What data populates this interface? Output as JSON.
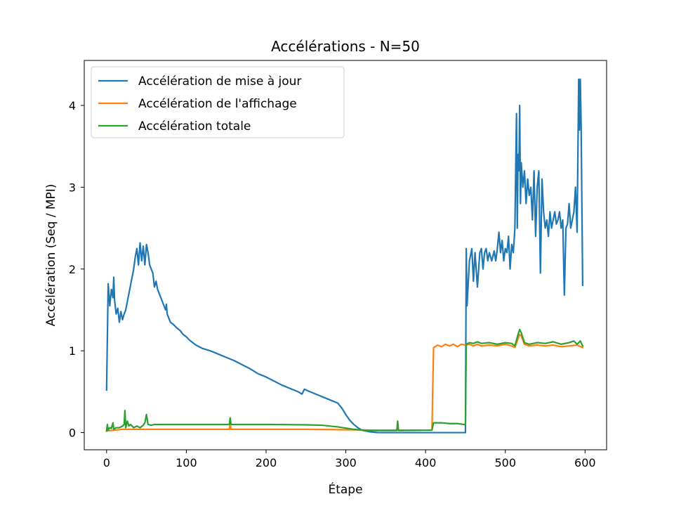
{
  "chart_data": {
    "type": "line",
    "title": "Accélérations - N=50",
    "xlabel": "Étape",
    "ylabel": "Accélération (Seq / MPI)",
    "xlim": [
      -28,
      627
    ],
    "ylim": [
      -0.21,
      4.55
    ],
    "xticks": [
      0,
      100,
      200,
      300,
      400,
      500,
      600
    ],
    "yticks": [
      0,
      1,
      2,
      3,
      4
    ],
    "legend_position": "upper-left",
    "grid": false,
    "series": [
      {
        "name": "Accélération de mise à jour",
        "color": "#1f77b4",
        "points": [
          [
            0,
            0.52
          ],
          [
            2,
            1.82
          ],
          [
            4,
            1.55
          ],
          [
            6,
            1.75
          ],
          [
            8,
            1.65
          ],
          [
            9,
            1.9
          ],
          [
            10,
            1.62
          ],
          [
            12,
            1.45
          ],
          [
            14,
            1.52
          ],
          [
            16,
            1.35
          ],
          [
            18,
            1.48
          ],
          [
            20,
            1.38
          ],
          [
            22,
            1.45
          ],
          [
            24,
            1.5
          ],
          [
            26,
            1.6
          ],
          [
            28,
            1.7
          ],
          [
            30,
            1.8
          ],
          [
            32,
            1.9
          ],
          [
            34,
            2.0
          ],
          [
            36,
            2.15
          ],
          [
            38,
            2.25
          ],
          [
            40,
            2.05
          ],
          [
            42,
            2.32
          ],
          [
            44,
            2.1
          ],
          [
            46,
            2.28
          ],
          [
            48,
            2.05
          ],
          [
            50,
            2.3
          ],
          [
            52,
            2.2
          ],
          [
            54,
            2.05
          ],
          [
            56,
            2.0
          ],
          [
            58,
            1.95
          ],
          [
            60,
            1.78
          ],
          [
            62,
            1.85
          ],
          [
            64,
            1.75
          ],
          [
            66,
            1.7
          ],
          [
            68,
            1.65
          ],
          [
            70,
            1.6
          ],
          [
            72,
            1.55
          ],
          [
            74,
            1.5
          ],
          [
            75,
            1.57
          ],
          [
            76,
            1.45
          ],
          [
            78,
            1.4
          ],
          [
            80,
            1.35
          ],
          [
            84,
            1.32
          ],
          [
            88,
            1.28
          ],
          [
            92,
            1.25
          ],
          [
            96,
            1.2
          ],
          [
            100,
            1.17
          ],
          [
            104,
            1.13
          ],
          [
            108,
            1.1
          ],
          [
            112,
            1.07
          ],
          [
            120,
            1.03
          ],
          [
            130,
            1.0
          ],
          [
            140,
            0.96
          ],
          [
            150,
            0.92
          ],
          [
            160,
            0.88
          ],
          [
            170,
            0.83
          ],
          [
            180,
            0.78
          ],
          [
            190,
            0.72
          ],
          [
            200,
            0.68
          ],
          [
            210,
            0.63
          ],
          [
            220,
            0.58
          ],
          [
            230,
            0.54
          ],
          [
            240,
            0.5
          ],
          [
            245,
            0.47
          ],
          [
            248,
            0.53
          ],
          [
            255,
            0.5
          ],
          [
            265,
            0.46
          ],
          [
            275,
            0.42
          ],
          [
            285,
            0.38
          ],
          [
            290,
            0.36
          ],
          [
            295,
            0.3
          ],
          [
            300,
            0.22
          ],
          [
            305,
            0.15
          ],
          [
            310,
            0.1
          ],
          [
            315,
            0.06
          ],
          [
            320,
            0.03
          ],
          [
            330,
            0.01
          ],
          [
            340,
            0.0
          ],
          [
            400,
            0.0
          ],
          [
            450,
            0.0
          ],
          [
            451,
            2.25
          ],
          [
            452,
            1.55
          ],
          [
            455,
            2.1
          ],
          [
            458,
            2.25
          ],
          [
            460,
            1.85
          ],
          [
            462,
            2.2
          ],
          [
            465,
            1.78
          ],
          [
            468,
            2.2
          ],
          [
            470,
            2.25
          ],
          [
            472,
            2.0
          ],
          [
            474,
            2.2
          ],
          [
            476,
            2.25
          ],
          [
            478,
            2.1
          ],
          [
            480,
            2.2
          ],
          [
            483,
            2.1
          ],
          [
            486,
            2.22
          ],
          [
            488,
            2.1
          ],
          [
            490,
            2.25
          ],
          [
            492,
            2.45
          ],
          [
            494,
            2.2
          ],
          [
            496,
            2.35
          ],
          [
            498,
            2.1
          ],
          [
            500,
            2.25
          ],
          [
            502,
            2.2
          ],
          [
            504,
            2.4
          ],
          [
            506,
            2.0
          ],
          [
            508,
            2.3
          ],
          [
            510,
            2.2
          ],
          [
            512,
            2.5
          ],
          [
            514,
            3.9
          ],
          [
            515,
            2.5
          ],
          [
            516,
            3.4
          ],
          [
            517,
            3.2
          ],
          [
            518,
            4.0
          ],
          [
            519,
            2.8
          ],
          [
            520,
            3.3
          ],
          [
            522,
            3.0
          ],
          [
            524,
            3.2
          ],
          [
            526,
            2.8
          ],
          [
            528,
            3.1
          ],
          [
            530,
            2.9
          ],
          [
            532,
            3.0
          ],
          [
            534,
            2.6
          ],
          [
            536,
            3.2
          ],
          [
            538,
            2.4
          ],
          [
            540,
            3.0
          ],
          [
            542,
            3.2
          ],
          [
            544,
            1.95
          ],
          [
            546,
            3.1
          ],
          [
            548,
            2.7
          ],
          [
            550,
            2.5
          ],
          [
            552,
            2.6
          ],
          [
            554,
            2.4
          ],
          [
            556,
            2.7
          ],
          [
            558,
            2.5
          ],
          [
            560,
            2.6
          ],
          [
            562,
            2.7
          ],
          [
            564,
            2.55
          ],
          [
            566,
            2.6
          ],
          [
            568,
            2.7
          ],
          [
            570,
            2.5
          ],
          [
            572,
            2.6
          ],
          [
            574,
            1.68
          ],
          [
            576,
            2.5
          ],
          [
            578,
            2.55
          ],
          [
            580,
            2.8
          ],
          [
            582,
            2.5
          ],
          [
            584,
            2.6
          ],
          [
            586,
            2.7
          ],
          [
            588,
            3.0
          ],
          [
            590,
            2.45
          ],
          [
            592,
            4.32
          ],
          [
            593,
            3.7
          ],
          [
            594,
            4.32
          ],
          [
            595,
            3.8
          ],
          [
            597,
            1.8
          ]
        ]
      },
      {
        "name": "Accélération de l'affichage",
        "color": "#ff7f0e",
        "points": [
          [
            0,
            0.02
          ],
          [
            10,
            0.03
          ],
          [
            20,
            0.04
          ],
          [
            50,
            0.04
          ],
          [
            100,
            0.04
          ],
          [
            154,
            0.04
          ],
          [
            155,
            0.11
          ],
          [
            156,
            0.04
          ],
          [
            200,
            0.04
          ],
          [
            250,
            0.04
          ],
          [
            300,
            0.035
          ],
          [
            330,
            0.03
          ],
          [
            364,
            0.03
          ],
          [
            365,
            0.12
          ],
          [
            366,
            0.03
          ],
          [
            408,
            0.03
          ],
          [
            410,
            1.04
          ],
          [
            412,
            1.05
          ],
          [
            415,
            1.07
          ],
          [
            420,
            1.05
          ],
          [
            425,
            1.08
          ],
          [
            430,
            1.06
          ],
          [
            435,
            1.08
          ],
          [
            440,
            1.05
          ],
          [
            445,
            1.08
          ],
          [
            450,
            1.07
          ],
          [
            455,
            1.08
          ],
          [
            460,
            1.06
          ],
          [
            465,
            1.08
          ],
          [
            470,
            1.06
          ],
          [
            480,
            1.07
          ],
          [
            490,
            1.06
          ],
          [
            500,
            1.08
          ],
          [
            508,
            1.06
          ],
          [
            512,
            1.04
          ],
          [
            516,
            1.15
          ],
          [
            518,
            1.2
          ],
          [
            520,
            1.18
          ],
          [
            524,
            1.08
          ],
          [
            530,
            1.06
          ],
          [
            540,
            1.07
          ],
          [
            550,
            1.06
          ],
          [
            560,
            1.07
          ],
          [
            570,
            1.05
          ],
          [
            580,
            1.06
          ],
          [
            590,
            1.07
          ],
          [
            597,
            1.04
          ]
        ]
      },
      {
        "name": "Accélération totale",
        "color": "#2ca02c",
        "points": [
          [
            0,
            0.02
          ],
          [
            1,
            0.1
          ],
          [
            2,
            0.03
          ],
          [
            4,
            0.06
          ],
          [
            6,
            0.05
          ],
          [
            8,
            0.12
          ],
          [
            9,
            0.04
          ],
          [
            12,
            0.06
          ],
          [
            16,
            0.06
          ],
          [
            20,
            0.08
          ],
          [
            22,
            0.1
          ],
          [
            23,
            0.27
          ],
          [
            24,
            0.06
          ],
          [
            26,
            0.14
          ],
          [
            28,
            0.08
          ],
          [
            30,
            0.1
          ],
          [
            34,
            0.06
          ],
          [
            38,
            0.08
          ],
          [
            42,
            0.06
          ],
          [
            46,
            0.09
          ],
          [
            48,
            0.12
          ],
          [
            50,
            0.22
          ],
          [
            52,
            0.1
          ],
          [
            56,
            0.09
          ],
          [
            60,
            0.1
          ],
          [
            80,
            0.1
          ],
          [
            100,
            0.1
          ],
          [
            120,
            0.1
          ],
          [
            150,
            0.1
          ],
          [
            154,
            0.1
          ],
          [
            155,
            0.18
          ],
          [
            156,
            0.1
          ],
          [
            200,
            0.1
          ],
          [
            250,
            0.095
          ],
          [
            270,
            0.09
          ],
          [
            290,
            0.07
          ],
          [
            310,
            0.04
          ],
          [
            330,
            0.025
          ],
          [
            364,
            0.025
          ],
          [
            365,
            0.14
          ],
          [
            366,
            0.025
          ],
          [
            408,
            0.03
          ],
          [
            410,
            0.12
          ],
          [
            420,
            0.12
          ],
          [
            430,
            0.11
          ],
          [
            440,
            0.11
          ],
          [
            448,
            0.1
          ],
          [
            450,
            0.1
          ],
          [
            451,
            1.08
          ],
          [
            455,
            1.1
          ],
          [
            460,
            1.09
          ],
          [
            465,
            1.11
          ],
          [
            470,
            1.09
          ],
          [
            480,
            1.1
          ],
          [
            490,
            1.08
          ],
          [
            500,
            1.1
          ],
          [
            508,
            1.09
          ],
          [
            512,
            1.06
          ],
          [
            516,
            1.2
          ],
          [
            518,
            1.26
          ],
          [
            520,
            1.22
          ],
          [
            524,
            1.1
          ],
          [
            530,
            1.08
          ],
          [
            540,
            1.1
          ],
          [
            550,
            1.09
          ],
          [
            560,
            1.11
          ],
          [
            570,
            1.08
          ],
          [
            580,
            1.1
          ],
          [
            586,
            1.12
          ],
          [
            590,
            1.08
          ],
          [
            594,
            1.12
          ],
          [
            597,
            1.06
          ]
        ]
      }
    ]
  }
}
